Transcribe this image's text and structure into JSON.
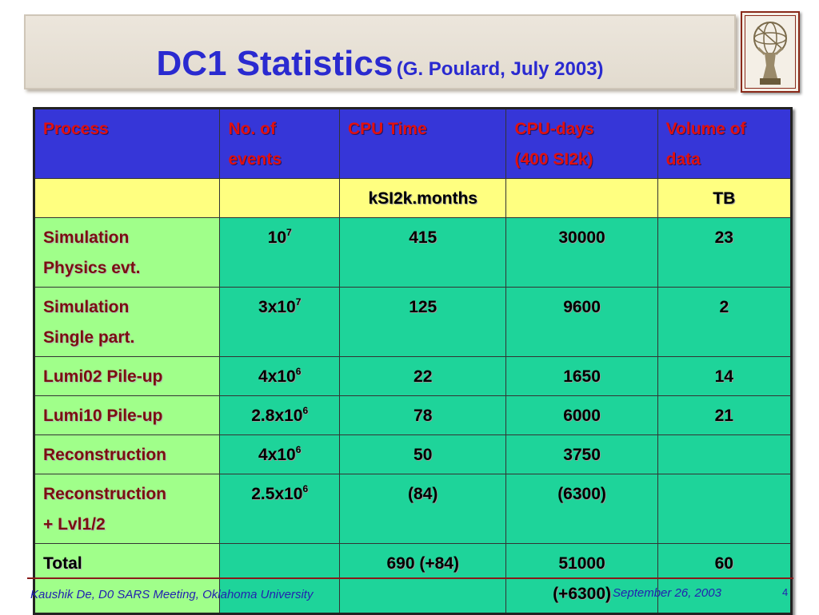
{
  "title": {
    "main": "DC1 Statistics",
    "sub": "(G. Poulard, July 2003)"
  },
  "logo": {
    "icon": "atlas-statue-icon"
  },
  "table": {
    "headers": [
      [
        "Process"
      ],
      [
        "No. of",
        "events"
      ],
      [
        "CPU Time"
      ],
      [
        "CPU-days",
        "(400 SI2k)"
      ],
      [
        "Volume of",
        "data"
      ]
    ],
    "units": [
      "",
      "",
      "kSI2k.months",
      "",
      "TB"
    ],
    "rows": [
      {
        "process": [
          "Simulation",
          "Physics evt."
        ],
        "events_base": "10",
        "events_exp": "7",
        "cpu_time": "415",
        "cpu_days": [
          "30000"
        ],
        "volume": "23"
      },
      {
        "process": [
          "Simulation",
          "Single part."
        ],
        "events_base": "3x10",
        "events_exp": "7",
        "cpu_time": "125",
        "cpu_days": [
          "9600"
        ],
        "volume": "2"
      },
      {
        "process": [
          "Lumi02 Pile-up"
        ],
        "events_base": "4x10",
        "events_exp": "6",
        "cpu_time": "22",
        "cpu_days": [
          "1650"
        ],
        "volume": "14"
      },
      {
        "process": [
          "Lumi10 Pile-up"
        ],
        "events_base": "2.8x10",
        "events_exp": "6",
        "cpu_time": "78",
        "cpu_days": [
          "6000"
        ],
        "volume": "21"
      },
      {
        "process": [
          "Reconstruction"
        ],
        "events_base": "4x10",
        "events_exp": "6",
        "cpu_time": "50",
        "cpu_days": [
          "3750"
        ],
        "volume": ""
      },
      {
        "process": [
          "Reconstruction",
          "+ Lvl1/2"
        ],
        "events_base": "2.5x10",
        "events_exp": "6",
        "cpu_time": "(84)",
        "cpu_days": [
          "(6300)"
        ],
        "volume": ""
      },
      {
        "process": [
          "Total"
        ],
        "events_base": "",
        "events_exp": "",
        "cpu_time": "690 (+84)",
        "cpu_days": [
          "51000",
          "(+6300)"
        ],
        "volume": "60"
      }
    ]
  },
  "footer": {
    "author": "Kaushik De, D0 SARS Meeting, Oklahoma University",
    "date": "September 26, 2003",
    "page": "4"
  }
}
